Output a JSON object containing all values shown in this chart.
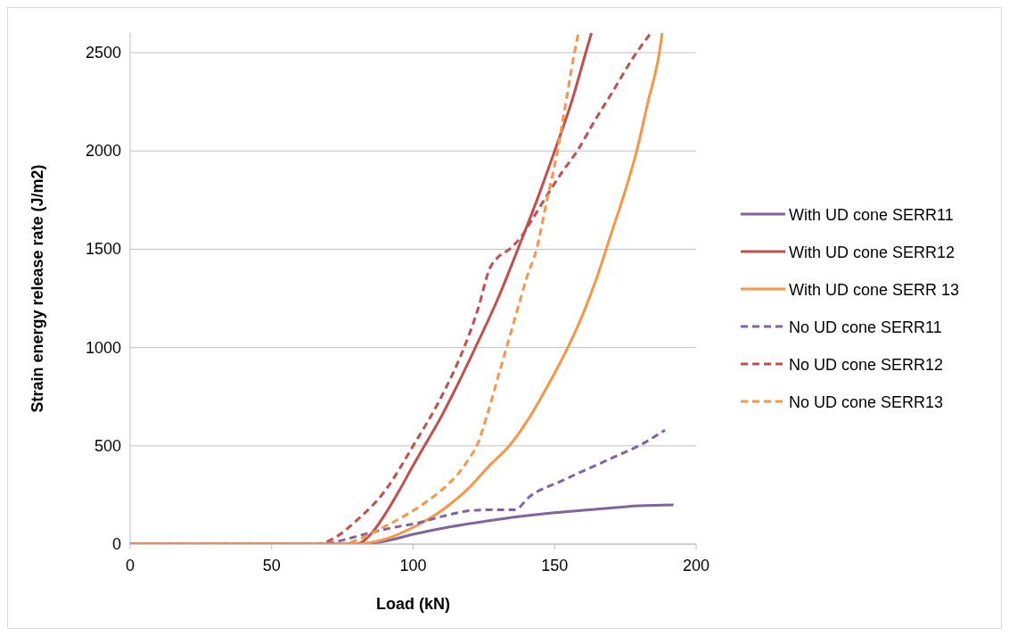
{
  "chart_data": {
    "type": "line",
    "xlabel": "Load (kN)",
    "ylabel": "Strain energy release rate (J/m2)",
    "xlim": [
      0,
      200
    ],
    "xticks": [
      0,
      50,
      100,
      150,
      200
    ],
    "ylim": [
      0,
      2600
    ],
    "yticks": [
      0,
      500,
      1000,
      1500,
      2000,
      2500
    ],
    "grid": "y",
    "legend": "right",
    "series": [
      {
        "name": "With UD cone SERR11",
        "color": "#8064a2",
        "line_style": "solid",
        "x": [
          0,
          80,
          90,
          100,
          112,
          125,
          137,
          150,
          165,
          180,
          192
        ],
        "values": [
          0,
          0,
          15,
          50,
          85,
          115,
          140,
          160,
          178,
          195,
          200
        ]
      },
      {
        "name": "With UD cone SERR12",
        "color": "#c0504d",
        "line_style": "solid",
        "x": [
          0,
          80,
          85,
          90,
          95,
          100,
          104,
          110,
          116,
          122,
          130,
          137,
          144,
          150,
          156,
          161,
          163
        ],
        "values": [
          0,
          0,
          50,
          150,
          270,
          400,
          500,
          650,
          820,
          1000,
          1250,
          1500,
          1760,
          2000,
          2250,
          2500,
          2600
        ]
      },
      {
        "name": "With UD cone SERR 13",
        "color": "#f79646",
        "line_style": "solid",
        "x": [
          0,
          80,
          90,
          100,
          110,
          120,
          127,
          134,
          140,
          145,
          150,
          155,
          160,
          165,
          170,
          175,
          179,
          183,
          187,
          188
        ],
        "values": [
          0,
          0,
          25,
          85,
          170,
          290,
          400,
          500,
          620,
          740,
          870,
          1010,
          1170,
          1360,
          1580,
          1800,
          2000,
          2250,
          2500,
          2600
        ]
      },
      {
        "name": "No UD cone SERR11",
        "color": "#8064a2",
        "line_style": "dashed",
        "x": [
          0,
          68,
          75,
          84,
          95,
          101,
          110,
          120,
          127,
          136,
          141,
          153,
          169,
          181,
          189
        ],
        "values": [
          0,
          0,
          20,
          55,
          90,
          105,
          140,
          170,
          175,
          175,
          240,
          325,
          430,
          510,
          580
        ]
      },
      {
        "name": "No UD cone SERR12",
        "color": "#c0504d",
        "line_style": "dashed",
        "x": [
          0,
          66,
          72,
          80,
          90,
          100,
          110,
          118,
          123,
          127,
          130,
          134,
          138,
          142,
          148,
          153,
          158,
          164,
          170,
          178,
          184
        ],
        "values": [
          0,
          0,
          30,
          120,
          270,
          500,
          750,
          1000,
          1200,
          1400,
          1460,
          1500,
          1560,
          1650,
          1790,
          1900,
          2000,
          2150,
          2290,
          2480,
          2600
        ]
      },
      {
        "name": "No UD cone SERR13",
        "color": "#f79646",
        "line_style": "dashed",
        "x": [
          0,
          75,
          80,
          90,
          100,
          107,
          112,
          116,
          120,
          122.5,
          126,
          130,
          133,
          137,
          140,
          143.6,
          147,
          151,
          154,
          157,
          158.4
        ],
        "values": [
          0,
          0,
          20,
          90,
          170,
          240,
          300,
          360,
          440,
          500,
          650,
          850,
          1000,
          1200,
          1350,
          1500,
          1730,
          2000,
          2250,
          2500,
          2600
        ]
      }
    ]
  }
}
